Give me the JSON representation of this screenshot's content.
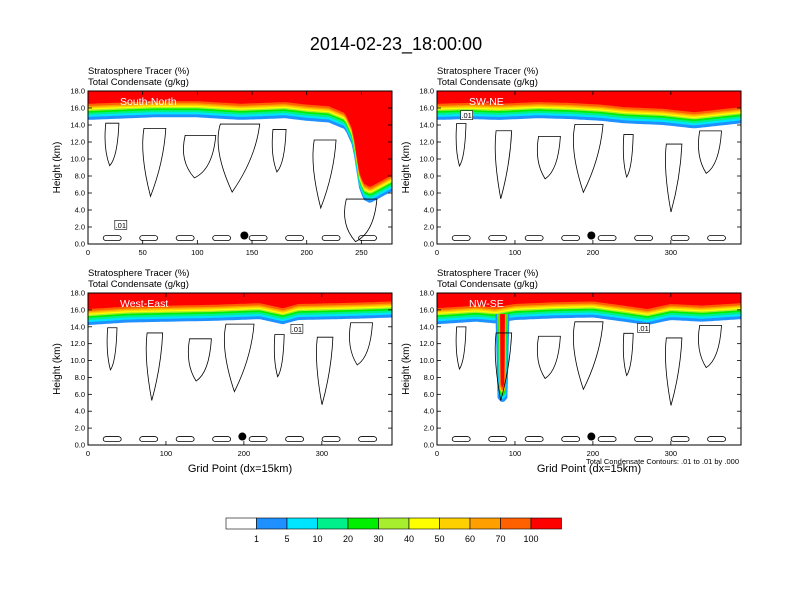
{
  "title": "2014-02-23_18:00:00",
  "colorbar": {
    "labels": [
      "1",
      "5",
      "10",
      "20",
      "30",
      "40",
      "50",
      "60",
      "70",
      "100"
    ],
    "colors": [
      "#ffffff",
      "#1e90ff",
      "#00e5ff",
      "#00f08c",
      "#00ee00",
      "#a6ee2e",
      "#ffff00",
      "#ffd000",
      "#ffa000",
      "#ff6000",
      "#ff0000"
    ]
  },
  "footnote": "Total Condensate Contours: .01 to .01 by .000",
  "chart_data": [
    {
      "type": "heatmap",
      "panel_label": "South-North",
      "header_line1": "Stratosphere Tracer   (%)",
      "header_line2": "Total Condensate   (g/kg)",
      "ylabel": "Height (km)",
      "xlabel": "",
      "xlim": [
        0,
        278
      ],
      "ylim": [
        0,
        18
      ],
      "xticks": [
        0,
        50,
        100,
        150,
        200,
        250
      ],
      "yticks": [
        "0.0",
        "2.0",
        "4.0",
        "6.0",
        "8.0",
        "10.0",
        "12.0",
        "14.0",
        "16.0",
        "18.0"
      ],
      "tropopause_km": [
        [
          0,
          14.6
        ],
        [
          20,
          14.7
        ],
        [
          60,
          14.9
        ],
        [
          100,
          14.9
        ],
        [
          140,
          14.6
        ],
        [
          180,
          14.8
        ],
        [
          200,
          14.5
        ],
        [
          220,
          14.3
        ],
        [
          235,
          13.5
        ],
        [
          242,
          11.5
        ],
        [
          245,
          9
        ],
        [
          248,
          6.5
        ],
        [
          252,
          5.2
        ],
        [
          258,
          4.8
        ],
        [
          278,
          6.2
        ]
      ],
      "contour_label": ".01",
      "contour_label_pos": [
        30,
        2.2
      ],
      "marker": [
        143,
        1.0
      ]
    },
    {
      "type": "heatmap",
      "panel_label": "SW-NE",
      "header_line1": "Stratosphere Tracer   (%)",
      "header_line2": "Total Condensate   (g/kg)",
      "ylabel": "Height (km)",
      "xlabel": "",
      "xlim": [
        0,
        390
      ],
      "ylim": [
        0,
        18
      ],
      "xticks": [
        0,
        100,
        200,
        300
      ],
      "yticks": [
        "0.0",
        "2.0",
        "4.0",
        "6.0",
        "8.0",
        "10.0",
        "12.0",
        "14.0",
        "16.0",
        "18.0"
      ],
      "tropopause_km": [
        [
          0,
          14.6
        ],
        [
          40,
          14.7
        ],
        [
          80,
          14.6
        ],
        [
          130,
          14.8
        ],
        [
          170,
          14.7
        ],
        [
          210,
          14.5
        ],
        [
          240,
          14.2
        ],
        [
          290,
          14.0
        ],
        [
          330,
          13.6
        ],
        [
          390,
          14.2
        ]
      ],
      "contour_label": ".01",
      "contour_label_pos": [
        38,
        15.1
      ],
      "marker": [
        198,
        1.0
      ]
    },
    {
      "type": "heatmap",
      "panel_label": "West-East",
      "header_line1": "Stratosphere Tracer   (%)",
      "header_line2": "Total Condensate   (g/kg)",
      "ylabel": "Height (km)",
      "xlabel": "Grid Point (dx=15km)",
      "xlim": [
        0,
        390
      ],
      "ylim": [
        0,
        18
      ],
      "xticks": [
        0,
        100,
        200,
        300
      ],
      "yticks": [
        "0.0",
        "2.0",
        "4.0",
        "6.0",
        "8.0",
        "10.0",
        "12.0",
        "14.0",
        "16.0",
        "18.0"
      ],
      "tropopause_km": [
        [
          0,
          14.2
        ],
        [
          50,
          14.5
        ],
        [
          100,
          14.6
        ],
        [
          160,
          14.7
        ],
        [
          220,
          14.9
        ],
        [
          250,
          14.3
        ],
        [
          270,
          14.8
        ],
        [
          320,
          14.9
        ],
        [
          360,
          15.0
        ],
        [
          390,
          15.1
        ]
      ],
      "contour_label": ".01",
      "contour_label_pos": [
        268,
        13.7
      ],
      "marker": [
        198,
        1.0
      ]
    },
    {
      "type": "heatmap",
      "panel_label": "NW-SE",
      "header_line1": "Stratosphere Tracer   (%)",
      "header_line2": "Total Condensate   (g/kg)",
      "ylabel": "Height (km)",
      "xlabel": "Grid Point (dx=15km)",
      "xlim": [
        0,
        390
      ],
      "ylim": [
        0,
        18
      ],
      "xticks": [
        0,
        100,
        200,
        300
      ],
      "yticks": [
        "0.0",
        "2.0",
        "4.0",
        "6.0",
        "8.0",
        "10.0",
        "12.0",
        "14.0",
        "16.0",
        "18.0"
      ],
      "tropopause_km": [
        [
          0,
          14.3
        ],
        [
          50,
          14.6
        ],
        [
          75,
          14.4
        ],
        [
          100,
          14.8
        ],
        [
          150,
          15.0
        ],
        [
          200,
          15.1
        ],
        [
          240,
          14.6
        ],
        [
          270,
          14.2
        ],
        [
          300,
          14.8
        ],
        [
          340,
          14.6
        ],
        [
          390,
          14.9
        ]
      ],
      "intrusion": {
        "x": 84,
        "bottom_km": 5.0
      },
      "contour_label": ".01",
      "contour_label_pos": [
        265,
        13.8
      ],
      "marker": [
        198,
        1.0
      ]
    }
  ]
}
